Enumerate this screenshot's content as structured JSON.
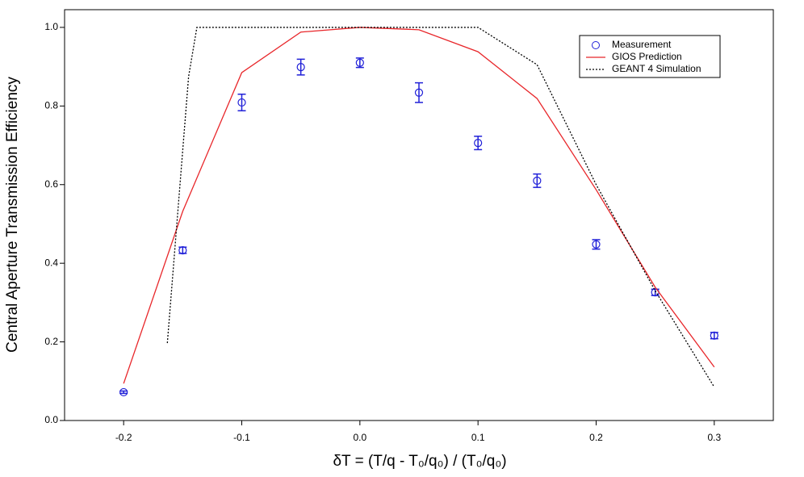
{
  "chart_data": {
    "type": "line",
    "xlabel": "δT = (T/q - T₀/q₀) / (T₀/q₀)",
    "ylabel": "Central Aperture Transmission Efficiency",
    "xlim": [
      -0.25,
      0.35
    ],
    "ylim": [
      0,
      1.045
    ],
    "xticks": [
      -0.2,
      -0.1,
      {
        "value": 0,
        "label": "0.0"
      },
      0.1,
      0.2,
      0.3
    ],
    "yticks": [
      {
        "value": 0,
        "label": "0.0"
      },
      0.2,
      0.4,
      0.6,
      0.8,
      {
        "value": 1,
        "label": "1.0"
      }
    ],
    "legend": "top-right",
    "series": [
      {
        "name": "Measurement",
        "kind": "errorbar",
        "color": "#2020d8",
        "x": [
          -0.2,
          -0.15,
          -0.1,
          -0.05,
          0,
          0.05,
          0.1,
          0.15,
          0.2,
          0.25,
          0.3
        ],
        "values": [
          0.072,
          0.433,
          0.809,
          0.899,
          0.91,
          0.834,
          0.706,
          0.61,
          0.448,
          0.326,
          0.216
        ],
        "errors": [
          0.003,
          0.008,
          0.021,
          0.02,
          0.012,
          0.025,
          0.017,
          0.017,
          0.012,
          0.008,
          0.008
        ]
      },
      {
        "name": "GIOS Prediction",
        "kind": "solid",
        "color": "#e8262a",
        "x": [
          -0.2,
          -0.15,
          -0.1,
          -0.05,
          0,
          0.05,
          0.1,
          0.15,
          0.2,
          0.25,
          0.3
        ],
        "values": [
          0.094,
          0.532,
          0.885,
          0.988,
          1.0,
          0.994,
          0.938,
          0.819,
          0.587,
          0.339,
          0.136
        ]
      },
      {
        "name": "GEANT 4 Simulation",
        "kind": "dotted",
        "color": "#000000",
        "x": [
          -0.163,
          -0.145,
          -0.138,
          0.1,
          0.15,
          0.2,
          0.25,
          0.3
        ],
        "values": [
          0.197,
          0.875,
          1.0,
          1.0,
          0.905,
          0.6,
          0.33,
          0.085
        ]
      }
    ]
  }
}
